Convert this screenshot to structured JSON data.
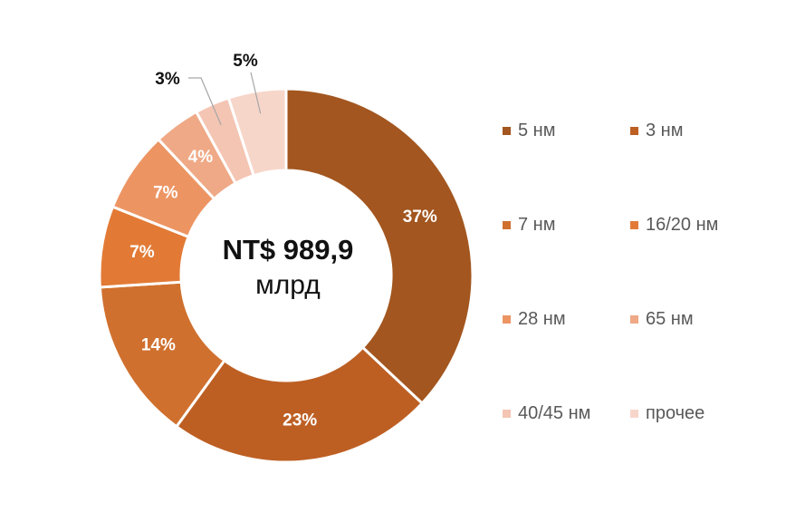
{
  "chart_data": {
    "type": "pie",
    "center": {
      "total": "NT$ 989,9",
      "unit": "млрд"
    },
    "slices": [
      {
        "name": "5 нм",
        "value": 37,
        "label": "37%",
        "color": "#a3561f"
      },
      {
        "name": "3 нм",
        "value": 23,
        "label": "23%",
        "color": "#bd5f23"
      },
      {
        "name": "7 нм",
        "value": 14,
        "label": "14%",
        "color": "#d0702e"
      },
      {
        "name": "16/20 нм",
        "value": 7,
        "label": "7%",
        "color": "#e27a36"
      },
      {
        "name": "28 нм",
        "value": 7,
        "label": "7%",
        "color": "#ec9563"
      },
      {
        "name": "65 нм",
        "value": 4,
        "label": "4%",
        "color": "#efa986"
      },
      {
        "name": "40/45 нм",
        "value": 3,
        "label": "3%",
        "color": "#f4c5b3"
      },
      {
        "name": "прочее",
        "value": 5,
        "label": "5%",
        "color": "#f7d6ca"
      }
    ],
    "legend_position": "right"
  }
}
